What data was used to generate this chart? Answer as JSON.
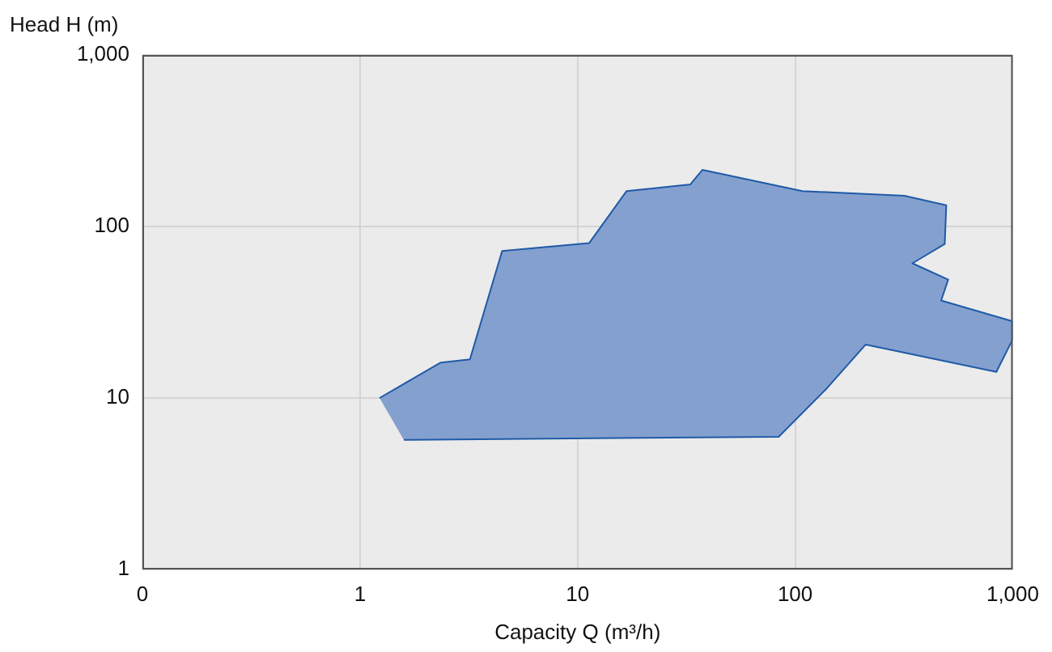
{
  "chart_data": {
    "type": "area",
    "xlabel": "Capacity Q (m³/h)",
    "ylabel": "Head H (m)",
    "log": "xy",
    "grid": true,
    "legend": false,
    "marker": "none",
    "xlim": [
      0.1,
      1000
    ],
    "xticks": [
      {
        "value": 0.1,
        "label": "0"
      },
      1,
      10,
      100,
      {
        "value": 1000,
        "label": "1,000"
      }
    ],
    "ylim": [
      1,
      1000
    ],
    "yticks": [
      1,
      10,
      100,
      {
        "value": 1000,
        "label": "1,000"
      }
    ],
    "series": [
      {
        "color": "#84a0cf",
        "x": [
          1.23,
          2.35,
          3.2,
          4.5,
          11.3,
          16.8,
          33,
          37.5,
          108,
          318,
          495,
          487,
          346,
          505,
          469,
          1000,
          1000,
          841,
          211,
          140,
          84,
          1.59
        ],
        "values": [
          10,
          16.1,
          16.8,
          72,
          80,
          161,
          176,
          214,
          161,
          151,
          133,
          79,
          61,
          49,
          37,
          28,
          22,
          14.2,
          20.5,
          11.4,
          5.94,
          5.7
        ]
      }
    ]
  }
}
